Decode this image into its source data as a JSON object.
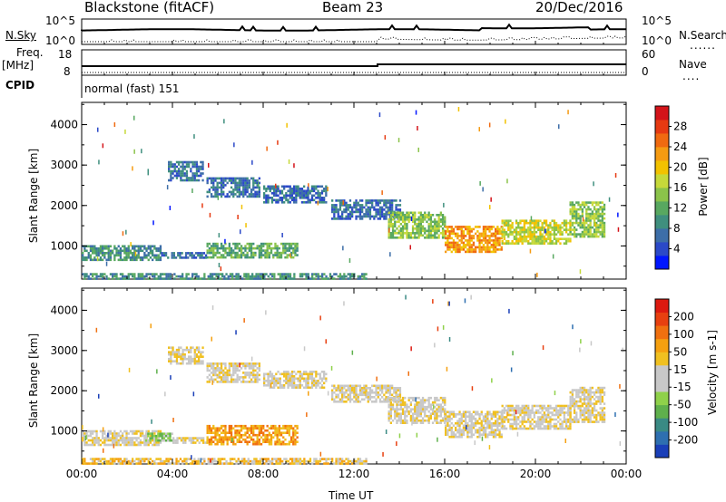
{
  "header": {
    "title": "Blackstone (fitACF)",
    "beam": "Beam 23",
    "date": "20/Dec/2016"
  },
  "status": {
    "nsky_label": "N.Sky",
    "nsearch_label": "N.Search",
    "nsearch_style": "......",
    "nsky_ticks": [
      "10^5",
      "10^0"
    ],
    "nsearch_ticks": [
      "10^5",
      "10^0"
    ],
    "freq_label_1": "Freq.",
    "freq_label_2": "[MHz]",
    "freq_ticks": [
      "18",
      "8"
    ],
    "nave_label": "Nave",
    "nave_style": "....",
    "nave_ticks": [
      "60",
      "0"
    ],
    "cpid_label": "CPID",
    "cpid_value": "normal (fast) 151"
  },
  "colorbars": {
    "power": {
      "label": "Power [dB]",
      "ticks": [
        "28",
        "24",
        "20",
        "16",
        "12",
        "8",
        "4"
      ],
      "colors": [
        "#0016ff",
        "#2b49c8",
        "#3d6ea8",
        "#3f8f7e",
        "#58a860",
        "#8bc34a",
        "#c6d93a",
        "#f2c200",
        "#f59b12",
        "#f06a10",
        "#e63a12",
        "#d4141a"
      ]
    },
    "velocity": {
      "label": "Velocity [m s-1]",
      "ticks": [
        "200",
        "100",
        "50",
        "15",
        "-15",
        "-50",
        "-100",
        "-200"
      ],
      "colors": [
        "#1a3fb8",
        "#2e6fb0",
        "#3a8a84",
        "#5fb04c",
        "#8fd14a",
        "#c8c8c8",
        "#c8c8c8",
        "#f0c020",
        "#f5a010",
        "#f07010",
        "#e84010",
        "#dd1a10"
      ]
    }
  },
  "chart_data": [
    {
      "type": "heatmap",
      "name": "power",
      "ylabel": "Slant Range [km]",
      "yticks": [
        "4000",
        "3000",
        "2000",
        "1000"
      ],
      "xticks": [],
      "xlim": [
        0,
        24
      ],
      "ylim": [
        180,
        4550
      ],
      "color_scale": "power",
      "echo_bands": [
        {
          "t0": 0.0,
          "t1": 3.5,
          "r0": 680,
          "r1": 1020,
          "level": 3
        },
        {
          "t0": 3.5,
          "t1": 5.5,
          "r0": 700,
          "r1": 850,
          "level": 2
        },
        {
          "t0": 5.5,
          "t1": 9.5,
          "r0": 720,
          "r1": 1080,
          "level": 4
        },
        {
          "t0": 0.0,
          "t1": 12.5,
          "r0": 200,
          "r1": 330,
          "level": 3
        },
        {
          "t0": 3.8,
          "t1": 5.3,
          "r0": 2650,
          "r1": 3100,
          "level": 2
        },
        {
          "t0": 5.5,
          "t1": 7.8,
          "r0": 2200,
          "r1": 2700,
          "level": 2
        },
        {
          "t0": 8.0,
          "t1": 10.8,
          "r0": 2100,
          "r1": 2500,
          "level": 2
        },
        {
          "t0": 11.0,
          "t1": 14.0,
          "r0": 1700,
          "r1": 2150,
          "level": 2
        },
        {
          "t0": 13.5,
          "t1": 16.0,
          "r0": 1200,
          "r1": 1850,
          "level": 5
        },
        {
          "t0": 16.0,
          "t1": 18.5,
          "r0": 850,
          "r1": 1500,
          "level": 8
        },
        {
          "t0": 18.5,
          "t1": 21.5,
          "r0": 1050,
          "r1": 1650,
          "level": 6
        },
        {
          "t0": 21.5,
          "t1": 23.0,
          "r0": 1250,
          "r1": 2100,
          "level": 5
        }
      ]
    },
    {
      "type": "heatmap",
      "name": "velocity",
      "ylabel": "Slant Range [km]",
      "xlabel": "Time UT",
      "yticks": [
        "4000",
        "3000",
        "2000",
        "1000"
      ],
      "xticks": [
        "00:00",
        "04:00",
        "08:00",
        "12:00",
        "16:00",
        "20:00",
        "00:00"
      ],
      "xlim": [
        0,
        24
      ],
      "ylim": [
        180,
        4550
      ],
      "color_scale": "velocity",
      "echo_bands": [
        {
          "t0": 0.0,
          "t1": 3.5,
          "r0": 680,
          "r1": 1020,
          "level": 6
        },
        {
          "t0": 2.8,
          "t1": 4.0,
          "r0": 760,
          "r1": 960,
          "level": 4
        },
        {
          "t0": 4.0,
          "t1": 5.5,
          "r0": 720,
          "r1": 850,
          "level": 6
        },
        {
          "t0": 5.5,
          "t1": 9.5,
          "r0": 650,
          "r1": 1150,
          "level": 8
        },
        {
          "t0": 0.0,
          "t1": 12.5,
          "r0": 200,
          "r1": 330,
          "level": 7
        },
        {
          "t0": 3.8,
          "t1": 5.3,
          "r0": 2650,
          "r1": 3100,
          "level": 6
        },
        {
          "t0": 5.5,
          "t1": 7.8,
          "r0": 2200,
          "r1": 2700,
          "level": 6
        },
        {
          "t0": 8.0,
          "t1": 10.8,
          "r0": 2100,
          "r1": 2500,
          "level": 6
        },
        {
          "t0": 11.0,
          "t1": 14.0,
          "r0": 1700,
          "r1": 2150,
          "level": 6
        },
        {
          "t0": 13.5,
          "t1": 16.0,
          "r0": 1200,
          "r1": 1850,
          "level": 6
        },
        {
          "t0": 16.0,
          "t1": 18.5,
          "r0": 850,
          "r1": 1500,
          "level": 6
        },
        {
          "t0": 18.5,
          "t1": 21.5,
          "r0": 1050,
          "r1": 1650,
          "level": 6
        },
        {
          "t0": 21.5,
          "t1": 23.0,
          "r0": 1250,
          "r1": 2100,
          "level": 6
        }
      ]
    }
  ]
}
